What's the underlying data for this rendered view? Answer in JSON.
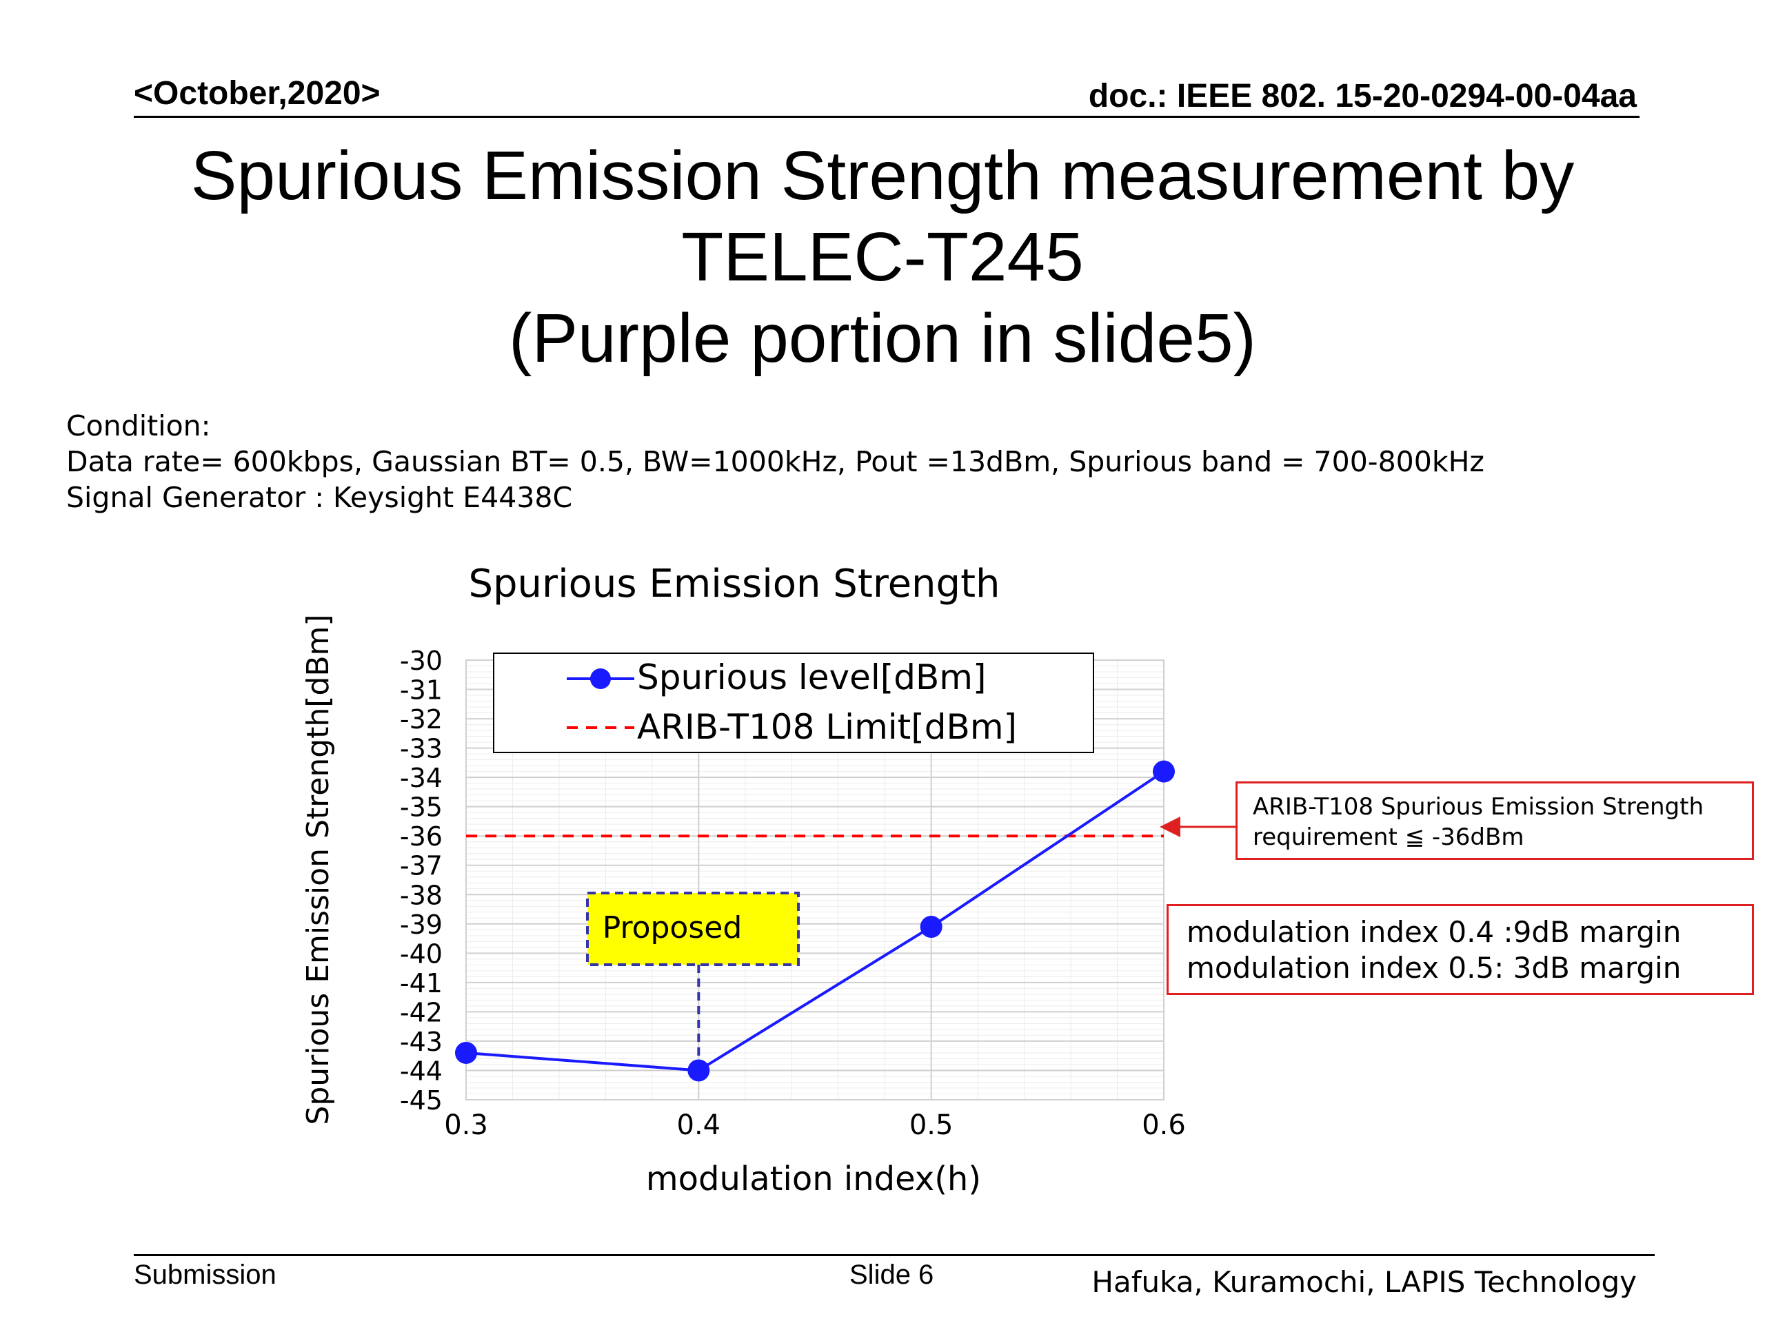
{
  "header": {
    "date": "<October,2020>",
    "doc": "doc.: IEEE 802. 15-20-0294-00-04aa"
  },
  "title": {
    "line1": "Spurious Emission Strength measurement by",
    "line2": "TELEC-T245",
    "line3": "(Purple portion in slide5)"
  },
  "conditions": {
    "line1": "Condition:",
    "line2": "Data rate= 600kbps, Gaussian BT= 0.5, BW=1000kHz, Pout =13dBm, Spurious band = 700-800kHz",
    "line3": "Signal Generator : Keysight E4438C"
  },
  "chart_data": {
    "type": "line",
    "title": "Spurious Emission Strength",
    "xlabel": "modulation index(h)",
    "ylabel": "Spurious Emission Strength[dBm]",
    "xlim": [
      0.3,
      0.6
    ],
    "ylim": [
      -45,
      -30
    ],
    "x_ticks": [
      "0.3",
      "0.4",
      "0.5",
      "0.6"
    ],
    "y_ticks": [
      "-30",
      "-31",
      "-32",
      "-33",
      "-34",
      "-35",
      "-36",
      "-37",
      "-38",
      "-39",
      "-40",
      "-41",
      "-42",
      "-43",
      "-44",
      "-45"
    ],
    "grid": true,
    "legend_position": "top",
    "series": [
      {
        "name": "Spurious level[dBm]",
        "x": [
          0.3,
          0.4,
          0.5,
          0.6
        ],
        "y": [
          -43.4,
          -44,
          -39.1,
          -33.8
        ],
        "color": "#1a1aff",
        "style": "solid-with-markers"
      },
      {
        "name": "ARIB-T108 Limit[dBm]",
        "x": [
          0.3,
          0.6
        ],
        "y": [
          -36,
          -36
        ],
        "color": "#ff0000",
        "style": "dashed"
      }
    ],
    "annotations": [
      {
        "text": "Proposed",
        "x": 0.4,
        "y": -44,
        "background": "#ffff00",
        "border": "#3333aa"
      }
    ]
  },
  "notes": {
    "requirement_line1": "ARIB-T108 Spurious Emission Strength",
    "requirement_line2": "requirement ≦ -36dBm",
    "margin_line1": "modulation index 0.4 :9dB margin",
    "margin_line2": "modulation index 0.5: 3dB margin"
  },
  "footer": {
    "submission": "Submission",
    "slide": "Slide 6",
    "authors": "Hafuka, Kuramochi, LAPIS Technology"
  }
}
